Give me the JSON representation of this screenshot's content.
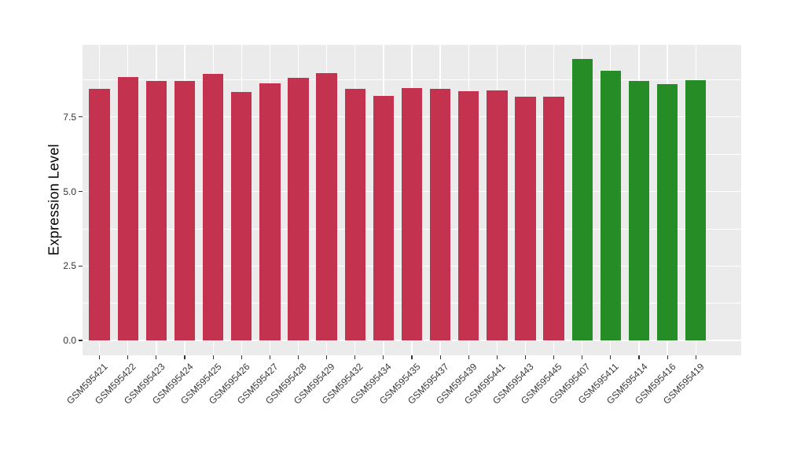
{
  "chart_data": {
    "type": "bar",
    "title": "",
    "xlabel": "",
    "ylabel": "Expression Level",
    "categories": [
      "GSM595421",
      "GSM595422",
      "GSM595423",
      "GSM595424",
      "GSM595425",
      "GSM595426",
      "GSM595427",
      "GSM595428",
      "GSM595429",
      "GSM595432",
      "GSM595434",
      "GSM595435",
      "GSM595437",
      "GSM595439",
      "GSM595441",
      "GSM595443",
      "GSM595445",
      "GSM595407",
      "GSM595411",
      "GSM595414",
      "GSM595416",
      "GSM595419"
    ],
    "values": [
      8.43,
      8.85,
      8.7,
      8.71,
      8.95,
      8.33,
      8.62,
      8.8,
      8.98,
      8.43,
      8.21,
      8.46,
      8.45,
      8.37,
      8.38,
      8.18,
      8.19,
      9.45,
      9.05,
      8.7,
      8.59,
      8.74
    ],
    "bar_groups": [
      "red",
      "red",
      "red",
      "red",
      "red",
      "red",
      "red",
      "red",
      "red",
      "red",
      "red",
      "red",
      "red",
      "red",
      "red",
      "red",
      "red",
      "green",
      "green",
      "green",
      "green",
      "green"
    ],
    "palette": {
      "red": "#C3324E",
      "green": "#268C25"
    },
    "yticks": [
      0.0,
      2.5,
      5.0,
      7.5
    ],
    "ytick_labels": [
      "0.0",
      "2.5",
      "5.0",
      "7.5"
    ],
    "yticks_minor": [
      1.25,
      3.75,
      6.25,
      8.75
    ],
    "ylim": [
      -0.5,
      9.92
    ],
    "grid": true,
    "legend": false,
    "panel_bg": "#EBEBEB",
    "grid_color": "#FFFFFF",
    "tick_text_color": "#333333"
  }
}
